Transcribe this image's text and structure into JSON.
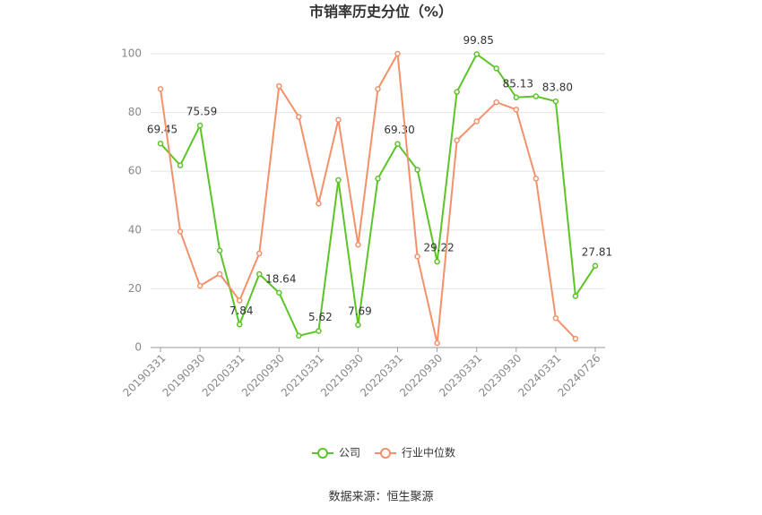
{
  "chart_data": {
    "type": "line",
    "title": "市销率历史分位（%）",
    "source": "数据来源：恒生聚源",
    "categories": [
      "20190331",
      null,
      "20190930",
      null,
      "20200331",
      null,
      "20200930",
      null,
      "20210331",
      null,
      "20210930",
      null,
      "20220331",
      null,
      "20220930",
      null,
      "20230331",
      null,
      "20230930",
      null,
      "20240331",
      null,
      "20240726"
    ],
    "series": [
      {
        "name": "公司",
        "color": "#5cc427",
        "values": [
          69.45,
          62,
          75.59,
          33,
          7.84,
          25,
          18.64,
          4,
          5.62,
          57,
          7.69,
          57.5,
          69.3,
          60.5,
          29.22,
          87,
          99.85,
          95,
          85.13,
          85.5,
          83.8,
          17.5,
          27.81
        ],
        "value_labels": [
          "69.45",
          null,
          "75.59",
          null,
          "7.84",
          null,
          "18.64",
          null,
          "5.62",
          null,
          "7.69",
          null,
          "69.30",
          null,
          "29.22",
          null,
          "99.85",
          null,
          "85.13",
          null,
          "83.80",
          null,
          "27.81"
        ]
      },
      {
        "name": "行业中位数",
        "color": "#f4916a",
        "values": [
          88,
          39.5,
          21,
          25,
          16,
          32,
          89,
          78.5,
          49,
          77.5,
          35,
          88,
          100,
          31,
          1.5,
          70.5,
          77,
          83.5,
          81,
          57.5,
          10,
          3,
          null
        ]
      }
    ],
    "ylim": [
      0,
      100
    ],
    "yticks": [
      0,
      20,
      40,
      60,
      80,
      100
    ],
    "grid": true,
    "legend": "bottom"
  }
}
